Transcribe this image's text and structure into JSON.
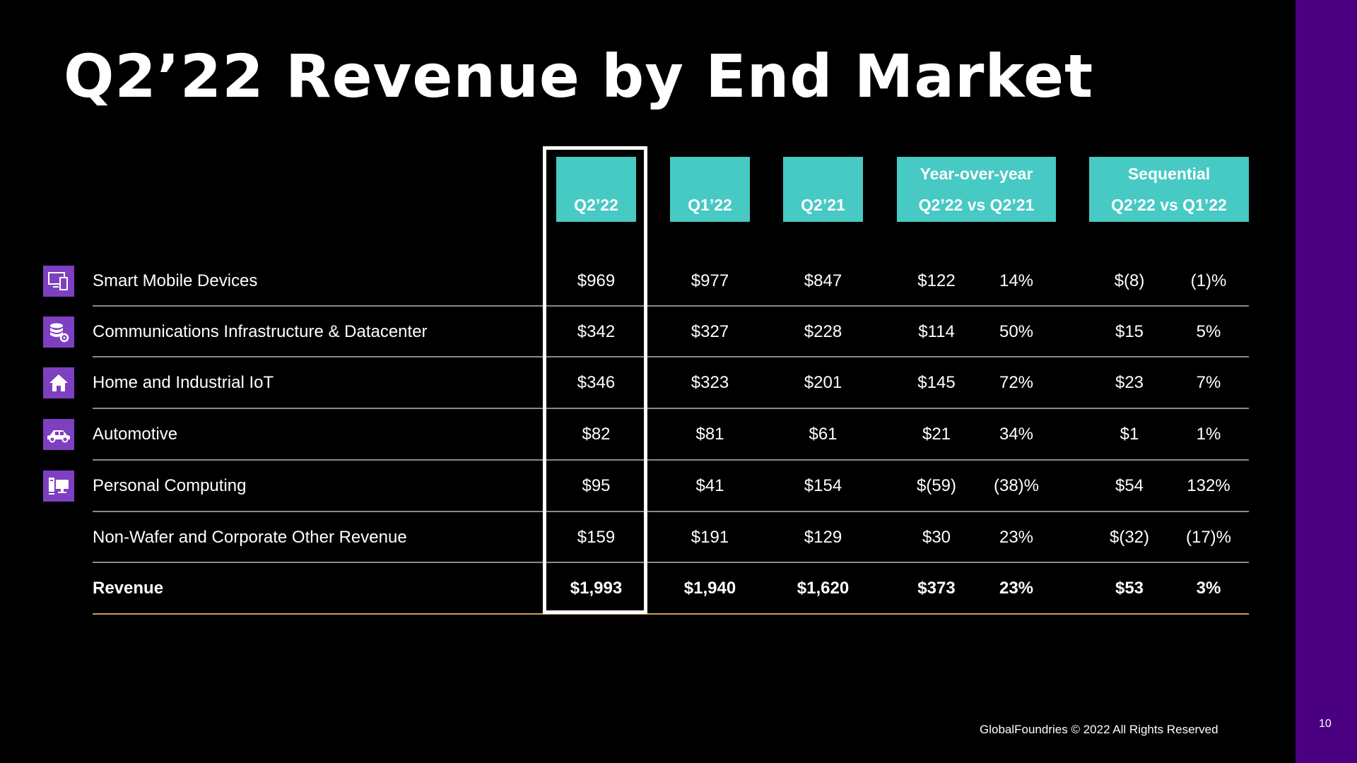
{
  "title": "Q2’22 Revenue by End Market",
  "columns": {
    "q2_22": "Q2’22",
    "q1_22": "Q1’22",
    "q2_21": "Q2’21",
    "yoy": {
      "title": "Year-over-year",
      "subtitle": "Q2’22 vs Q2’21"
    },
    "seq": {
      "title": "Sequential",
      "subtitle": "Q2’22 vs Q1’22"
    }
  },
  "rows": [
    {
      "label": "Smart Mobile Devices",
      "icon": "mobile-devices-icon",
      "q2_22": "$969",
      "q1_22": "$977",
      "q2_21": "$847",
      "yoy_abs": "$122",
      "yoy_pct": "14%",
      "seq_abs": "$(8)",
      "seq_pct": "(1)%"
    },
    {
      "label": "Communications Infrastructure & Datacenter",
      "icon": "database-gear-icon",
      "q2_22": "$342",
      "q1_22": "$327",
      "q2_21": "$228",
      "yoy_abs": "$114",
      "yoy_pct": "50%",
      "seq_abs": "$15",
      "seq_pct": "5%"
    },
    {
      "label": "Home and Industrial IoT",
      "icon": "home-icon",
      "q2_22": "$346",
      "q1_22": "$323",
      "q2_21": "$201",
      "yoy_abs": "$145",
      "yoy_pct": "72%",
      "seq_abs": "$23",
      "seq_pct": "7%"
    },
    {
      "label": "Automotive",
      "icon": "car-icon",
      "q2_22": "$82",
      "q1_22": "$81",
      "q2_21": "$61",
      "yoy_abs": "$21",
      "yoy_pct": "34%",
      "seq_abs": "$1",
      "seq_pct": "1%"
    },
    {
      "label": "Personal Computing",
      "icon": "computer-icon",
      "q2_22": "$95",
      "q1_22": "$41",
      "q2_21": "$154",
      "yoy_abs": "$(59)",
      "yoy_pct": "(38)%",
      "seq_abs": "$54",
      "seq_pct": "132%"
    },
    {
      "label": "Non-Wafer and Corporate Other Revenue",
      "icon": "",
      "q2_22": "$159",
      "q1_22": "$191",
      "q2_21": "$129",
      "yoy_abs": "$30",
      "yoy_pct": "23%",
      "seq_abs": "$(32)",
      "seq_pct": "(17)%"
    },
    {
      "label": "Revenue",
      "icon": "",
      "q2_22": "$1,993",
      "q1_22": "$1,940",
      "q2_21": "$1,620",
      "yoy_abs": "$373",
      "yoy_pct": "23%",
      "seq_abs": "$53",
      "seq_pct": "3%"
    }
  ],
  "footer": "GlobalFoundries © 2022 All Rights Reserved",
  "page_number": "10",
  "colors": {
    "header_fill": "#47c9c4",
    "icon_fill": "#7e3fc0",
    "side_bar": "#4b0082",
    "total_rule": "#c9a24a"
  }
}
